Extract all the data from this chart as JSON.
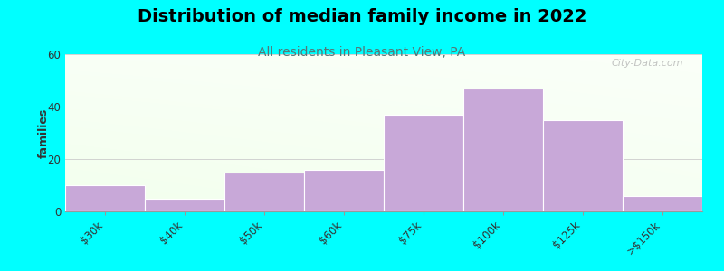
{
  "categories": [
    "$30k",
    "$40k",
    "$50k",
    "$60k",
    "$75k",
    "$100k",
    "$125k",
    ">$150k"
  ],
  "values": [
    10,
    5,
    15,
    16,
    37,
    47,
    35,
    6
  ],
  "bar_color": "#C8A8D8",
  "bar_edge_color": "#FFFFFF",
  "title": "Distribution of median family income in 2022",
  "subtitle": "All residents in Pleasant View, PA",
  "ylabel": "families",
  "ylim": [
    0,
    60
  ],
  "yticks": [
    0,
    20,
    40,
    60
  ],
  "background_color": "#00FFFF",
  "title_fontsize": 14,
  "subtitle_fontsize": 10,
  "subtitle_color": "#557777",
  "watermark": "City-Data.com"
}
